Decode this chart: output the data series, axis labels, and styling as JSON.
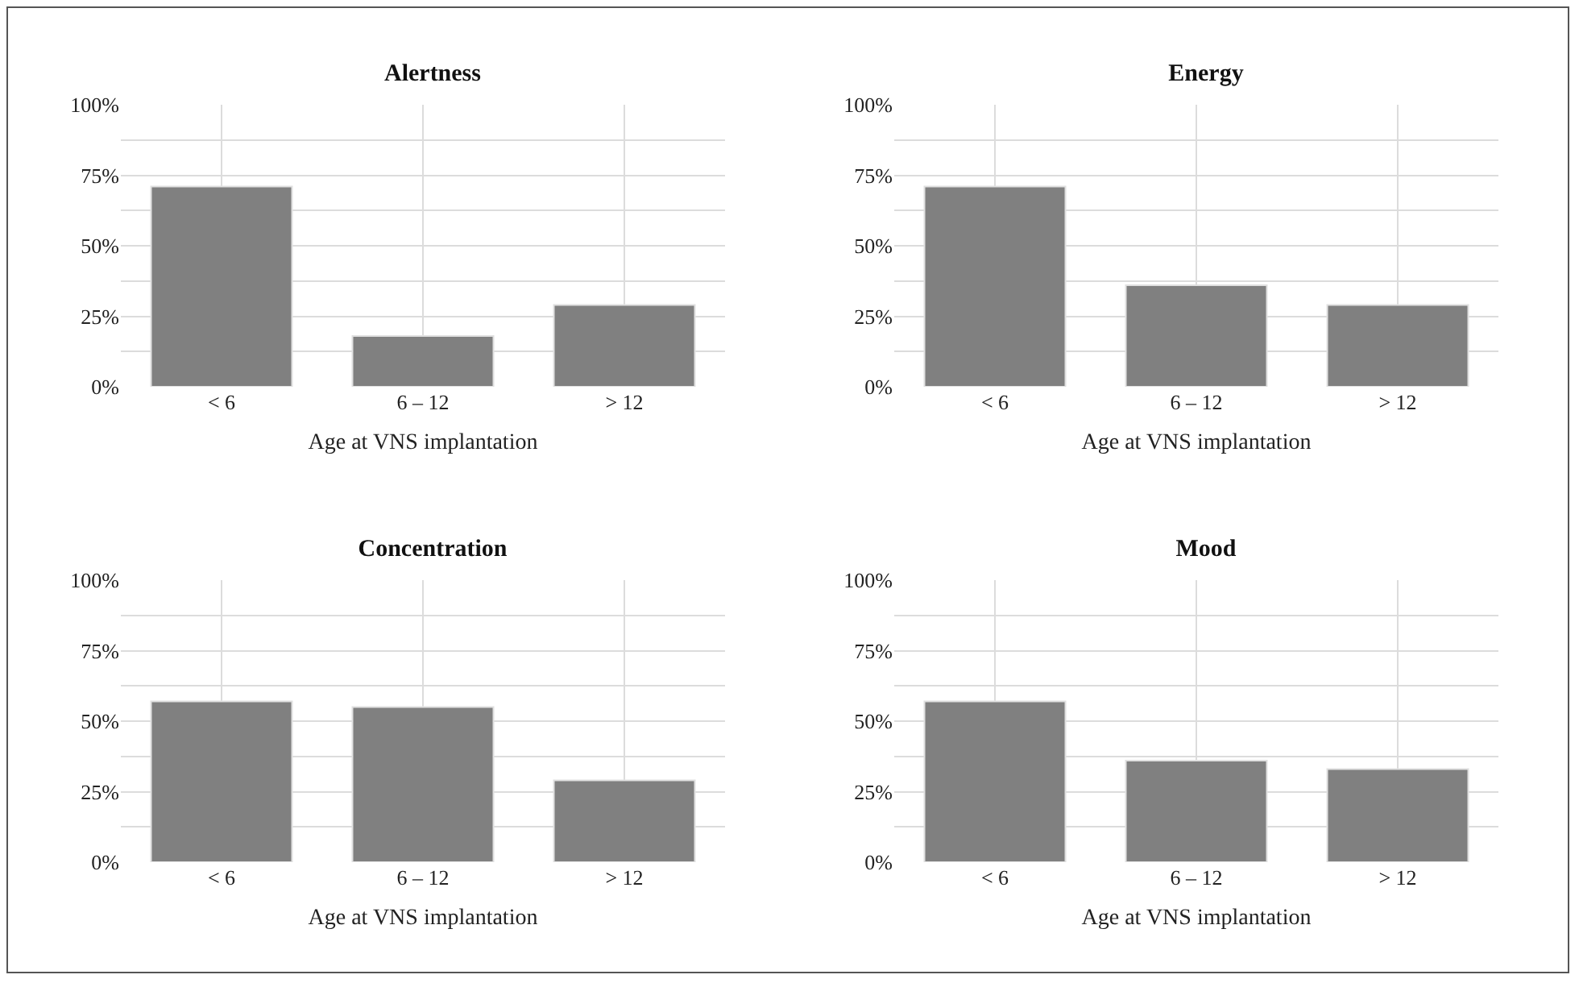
{
  "chart_data": [
    {
      "type": "bar",
      "title": "Alertness",
      "xlabel": "Age at VNS implantation",
      "categories": [
        "< 6",
        "6 – 12",
        "> 12"
      ],
      "values": [
        71,
        18,
        29
      ],
      "color": "#808080",
      "ylim": [
        0,
        100
      ],
      "yticks": [
        {
          "value": 0,
          "label": "0%"
        },
        {
          "value": 12.5,
          "label": null
        },
        {
          "value": 25,
          "label": "25%"
        },
        {
          "value": 37.5,
          "label": null
        },
        {
          "value": 50,
          "label": "50%"
        },
        {
          "value": 62.5,
          "label": null
        },
        {
          "value": 75,
          "label": "75%"
        },
        {
          "value": 87.5,
          "label": null
        },
        {
          "value": 100,
          "label": "100%"
        }
      ],
      "grid": true
    },
    {
      "type": "bar",
      "title": "Energy",
      "xlabel": "Age at VNS implantation",
      "categories": [
        "< 6",
        "6 – 12",
        "> 12"
      ],
      "values": [
        71,
        36,
        29
      ],
      "color": "#808080",
      "ylim": [
        0,
        100
      ],
      "yticks": [
        {
          "value": 0,
          "label": "0%"
        },
        {
          "value": 12.5,
          "label": null
        },
        {
          "value": 25,
          "label": "25%"
        },
        {
          "value": 37.5,
          "label": null
        },
        {
          "value": 50,
          "label": "50%"
        },
        {
          "value": 62.5,
          "label": null
        },
        {
          "value": 75,
          "label": "75%"
        },
        {
          "value": 87.5,
          "label": null
        },
        {
          "value": 100,
          "label": "100%"
        }
      ],
      "grid": true
    },
    {
      "type": "bar",
      "title": "Concentration",
      "xlabel": "Age at VNS implantation",
      "categories": [
        "< 6",
        "6 – 12",
        "> 12"
      ],
      "values": [
        57,
        55,
        29
      ],
      "color": "#808080",
      "ylim": [
        0,
        100
      ],
      "yticks": [
        {
          "value": 0,
          "label": "0%"
        },
        {
          "value": 12.5,
          "label": null
        },
        {
          "value": 25,
          "label": "25%"
        },
        {
          "value": 37.5,
          "label": null
        },
        {
          "value": 50,
          "label": "50%"
        },
        {
          "value": 62.5,
          "label": null
        },
        {
          "value": 75,
          "label": "75%"
        },
        {
          "value": 87.5,
          "label": null
        },
        {
          "value": 100,
          "label": "100%"
        }
      ],
      "grid": true
    },
    {
      "type": "bar",
      "title": "Mood",
      "xlabel": "Age at VNS implantation",
      "categories": [
        "< 6",
        "6 – 12",
        "> 12"
      ],
      "values": [
        57,
        36,
        33
      ],
      "color": "#808080",
      "ylim": [
        0,
        100
      ],
      "yticks": [
        {
          "value": 0,
          "label": "0%"
        },
        {
          "value": 12.5,
          "label": null
        },
        {
          "value": 25,
          "label": "25%"
        },
        {
          "value": 37.5,
          "label": null
        },
        {
          "value": 50,
          "label": "50%"
        },
        {
          "value": 62.5,
          "label": null
        },
        {
          "value": 75,
          "label": "75%"
        },
        {
          "value": 87.5,
          "label": null
        },
        {
          "value": 100,
          "label": "100%"
        }
      ],
      "grid": true
    }
  ]
}
